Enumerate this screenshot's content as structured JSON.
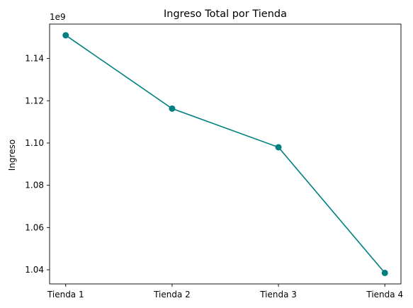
{
  "chart_data": {
    "type": "line",
    "title": "Ingreso Total por Tienda",
    "xlabel": "",
    "ylabel": "Ingreso",
    "y_scale_label": "1e9",
    "categories": [
      "Tienda 1",
      "Tienda 2",
      "Tienda 3",
      "Tienda 4"
    ],
    "series": [
      {
        "values": [
          1.151,
          1.1163,
          1.098,
          1.0385
        ],
        "color": "#008080",
        "marker": "circle"
      }
    ],
    "y_ticks": [
      1.04,
      1.06,
      1.08,
      1.1,
      1.12,
      1.14
    ],
    "y_tick_labels": [
      "1.04",
      "1.06",
      "1.08",
      "1.10",
      "1.12",
      "1.14"
    ],
    "ylim": [
      1.0333,
      1.1563
    ],
    "grid": false,
    "legend": "none"
  }
}
